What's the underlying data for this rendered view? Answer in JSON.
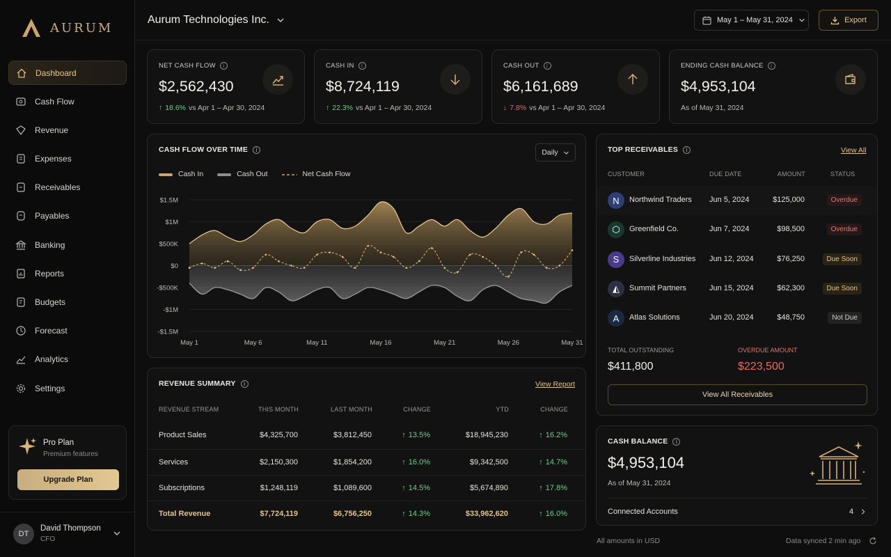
{
  "brand": {
    "name": "AURUM"
  },
  "sidebar": {
    "items": [
      {
        "label": "Dashboard",
        "icon": "home-icon"
      },
      {
        "label": "Cash Flow",
        "icon": "cash-flow-icon"
      },
      {
        "label": "Revenue",
        "icon": "revenue-icon"
      },
      {
        "label": "Expenses",
        "icon": "expenses-icon"
      },
      {
        "label": "Receivables",
        "icon": "receivables-icon"
      },
      {
        "label": "Payables",
        "icon": "payables-icon"
      },
      {
        "label": "Banking",
        "icon": "bank-icon"
      },
      {
        "label": "Reports",
        "icon": "reports-icon"
      },
      {
        "label": "Budgets",
        "icon": "budgets-icon"
      },
      {
        "label": "Forecast",
        "icon": "forecast-icon"
      },
      {
        "label": "Analytics",
        "icon": "analytics-icon"
      },
      {
        "label": "Settings",
        "icon": "gear-icon"
      }
    ],
    "plan": {
      "title": "Pro Plan",
      "subtitle": "Premium features",
      "button": "Upgrade Plan"
    },
    "user": {
      "initials": "DT",
      "name": "David Thompson",
      "role": "CFO"
    }
  },
  "header": {
    "company": "Aurum Technologies Inc.",
    "date_range": "May 1 – May 31, 2024",
    "export": "Export"
  },
  "kpis": [
    {
      "label": "NET CASH FLOW",
      "value": "$2,562,430",
      "change": "18.6%",
      "direction": "up",
      "comparison": "vs Apr 1 – Apr 30, 2024",
      "icon": "trend-up-icon"
    },
    {
      "label": "CASH IN",
      "value": "$8,724,119",
      "change": "22.3%",
      "direction": "up",
      "comparison": "vs Apr 1 – Apr 30, 2024",
      "icon": "arrow-down-icon"
    },
    {
      "label": "CASH OUT",
      "value": "$6,161,689",
      "change": "7.8%",
      "direction": "down",
      "comparison": "vs Apr 1 – Apr 30, 2024",
      "icon": "arrow-up-icon"
    },
    {
      "label": "ENDING CASH BALANCE",
      "value": "$4,953,104",
      "change": "",
      "direction": "none",
      "comparison": "As of May 31, 2024",
      "icon": "wallet-icon"
    }
  ],
  "cashflow_card": {
    "title": "CASH FLOW OVER TIME",
    "period": "Daily"
  },
  "chart_data": {
    "type": "area",
    "title": "CASH FLOW OVER TIME",
    "x_ticks": [
      "May 1",
      "May 6",
      "May 11",
      "May 16",
      "May 21",
      "May 26",
      "May 31"
    ],
    "y_ticks": [
      "$1.5M",
      "$1M",
      "$500K",
      "$0",
      "-$500K",
      "-$1M",
      "-$1.5M"
    ],
    "ylim": [
      -1500000,
      1500000
    ],
    "x": [
      1,
      2,
      3,
      4,
      5,
      6,
      7,
      8,
      9,
      10,
      11,
      12,
      13,
      14,
      15,
      16,
      17,
      18,
      19,
      20,
      21,
      22,
      23,
      24,
      25,
      26,
      27,
      28,
      29,
      30,
      31
    ],
    "series": [
      {
        "name": "Cash In",
        "style": "solid",
        "color": "#c9a86a",
        "values": [
          500000,
          700000,
          800000,
          650000,
          550000,
          700000,
          950000,
          1050000,
          850000,
          750000,
          1000000,
          1050000,
          850000,
          900000,
          1150000,
          1450000,
          1300000,
          750000,
          900000,
          1050000,
          900000,
          1050000,
          800000,
          650000,
          850000,
          1150000,
          1300000,
          1000000,
          950000,
          1150000,
          1200000
        ]
      },
      {
        "name": "Cash Out",
        "style": "solid",
        "color": "#8f8f8f",
        "values": [
          -400000,
          -650000,
          -500000,
          -550000,
          -650000,
          -750000,
          -500000,
          -600000,
          -800000,
          -700000,
          -550000,
          -500000,
          -750000,
          -650000,
          -500000,
          -550000,
          -650000,
          -750000,
          -600000,
          -450000,
          -500000,
          -700000,
          -800000,
          -550000,
          -450000,
          -600000,
          -750000,
          -800000,
          -850000,
          -600000,
          -450000
        ]
      },
      {
        "name": "Net Cash Flow",
        "style": "dashed",
        "color": "#c9a86a",
        "values": [
          -50000,
          50000,
          -50000,
          100000,
          -100000,
          -50000,
          250000,
          100000,
          0,
          -50000,
          250000,
          300000,
          200000,
          -50000,
          450000,
          300000,
          200000,
          -50000,
          100000,
          400000,
          -50000,
          -150000,
          250000,
          200000,
          0,
          -250000,
          300000,
          250000,
          -50000,
          0,
          350000
        ]
      }
    ],
    "grid": "horizontal",
    "legend": "top-left"
  },
  "revenue": {
    "title": "REVENUE SUMMARY",
    "link": "View Report",
    "columns": [
      "REVENUE STREAM",
      "THIS MONTH",
      "LAST MONTH",
      "CHANGE",
      "YTD",
      "CHANGE"
    ],
    "rows": [
      {
        "name": "Product Sales",
        "this": "$4,325,700",
        "last": "$3,812,450",
        "change": "13.5%",
        "ytd": "$18,945,230",
        "ytd_change": "16.2%"
      },
      {
        "name": "Services",
        "this": "$2,150,300",
        "last": "$1,854,200",
        "change": "16.0%",
        "ytd": "$9,342,500",
        "ytd_change": "14.7%"
      },
      {
        "name": "Subscriptions",
        "this": "$1,248,119",
        "last": "$1,089,600",
        "change": "14.5%",
        "ytd": "$5,674,890",
        "ytd_change": "17.8%"
      },
      {
        "name": "Total Revenue",
        "this": "$7,724,119",
        "last": "$6,756,250",
        "change": "14.3%",
        "ytd": "$33,962,620",
        "ytd_change": "16.0%"
      }
    ]
  },
  "receivables": {
    "title": "TOP RECEIVABLES",
    "link": "View All",
    "columns": [
      "CUSTOMER",
      "DUE DATE",
      "AMOUNT",
      "STATUS"
    ],
    "rows": [
      {
        "logo": "N",
        "customer": "Northwind Traders",
        "due": "Jun 5, 2024",
        "amount": "$125,000",
        "status": "Overdue",
        "status_type": "overdue",
        "logo_color": "#2e3f75"
      },
      {
        "logo": "⬡",
        "customer": "Greenfield Co.",
        "due": "Jun 7, 2024",
        "amount": "$98,500",
        "status": "Overdue",
        "status_type": "overdue",
        "logo_color": "#16382e"
      },
      {
        "logo": "S",
        "customer": "Silverline Industries",
        "due": "Jun 12, 2024",
        "amount": "$76,250",
        "status": "Due Soon",
        "status_type": "soon",
        "logo_color": "#4a3a8c"
      },
      {
        "logo": "◭",
        "customer": "Summit Partners",
        "due": "Jun 15, 2024",
        "amount": "$62,300",
        "status": "Due Soon",
        "status_type": "soon",
        "logo_color": "#2c3040"
      },
      {
        "logo": "A",
        "customer": "Atlas Solutions",
        "due": "Jun 20, 2024",
        "amount": "$48,750",
        "status": "Not Due",
        "status_type": "not",
        "logo_color": "#1a2a44"
      }
    ],
    "total_label": "TOTAL OUTSTANDING",
    "total_value": "$411,800",
    "overdue_label": "OVERDUE AMOUNT",
    "overdue_value": "$223,500",
    "button": "View All Receivables"
  },
  "cash_balance": {
    "title": "CASH BALANCE",
    "value": "$4,953,104",
    "as_of": "As of May 31, 2024",
    "accounts_label": "Connected Accounts",
    "accounts_count": "4"
  },
  "footer": {
    "currency": "All amounts in USD",
    "sync": "Data synced 2 min ago"
  }
}
